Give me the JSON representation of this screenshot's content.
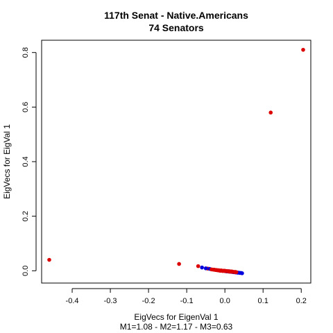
{
  "chart_data": {
    "type": "scatter",
    "title": "117th Senat -  Native.Americans",
    "subtitle": "74 Senators",
    "xlabel": "EigVecs for EigenVal  1",
    "xlabel_sub": "M1=1.08  -  M2=1.17  -  M3=0.63",
    "ylabel": "EigVecs for EigVal 1",
    "xlim": [
      -0.48,
      0.225
    ],
    "ylim": [
      -0.045,
      0.845
    ],
    "x_ticks": [
      -0.4,
      -0.3,
      -0.2,
      -0.1,
      0.0,
      0.1,
      0.2
    ],
    "x_tick_labels": [
      "-0.4",
      "-0.3",
      "-0.2",
      "-0.1",
      "0.0",
      "0.1",
      "0.2"
    ],
    "y_ticks": [
      0.0,
      0.2,
      0.4,
      0.6,
      0.8
    ],
    "y_tick_labels": [
      "0.0",
      "0.2",
      "0.4",
      "0.6",
      "0.8"
    ],
    "grid": false,
    "series": [
      {
        "color": "#dd0000",
        "points": [
          [
            0.205,
            0.81
          ],
          [
            0.12,
            0.58
          ],
          [
            -0.46,
            0.04
          ],
          [
            -0.12,
            0.025
          ],
          [
            -0.07,
            0.017
          ],
          [
            -0.045,
            0.008
          ],
          [
            -0.03,
            0.004
          ],
          [
            -0.025,
            0.003
          ],
          [
            -0.02,
            0.002
          ],
          [
            -0.015,
            0.001
          ],
          [
            -0.012,
            0.0
          ],
          [
            -0.008,
            0.0
          ],
          [
            -0.005,
            -0.001
          ],
          [
            0.0,
            -0.001
          ],
          [
            0.003,
            -0.002
          ],
          [
            0.006,
            -0.002
          ],
          [
            0.01,
            -0.003
          ],
          [
            0.013,
            -0.003
          ],
          [
            0.017,
            -0.004
          ],
          [
            0.02,
            -0.004
          ],
          [
            0.024,
            -0.005
          ],
          [
            -0.018,
            0.002
          ],
          [
            -0.01,
            0.001
          ],
          [
            -0.002,
            0.0
          ],
          [
            0.008,
            -0.002
          ],
          [
            0.015,
            -0.003
          ]
        ]
      },
      {
        "color": "#0000dd",
        "points": [
          [
            -0.06,
            0.012
          ],
          [
            -0.05,
            0.009
          ],
          [
            -0.04,
            0.007
          ],
          [
            0.0,
            -0.001
          ],
          [
            0.005,
            -0.002
          ],
          [
            0.01,
            -0.002
          ],
          [
            0.015,
            -0.003
          ],
          [
            0.02,
            -0.004
          ],
          [
            0.025,
            -0.005
          ],
          [
            0.03,
            -0.006
          ],
          [
            0.033,
            -0.007
          ],
          [
            0.036,
            -0.007
          ],
          [
            0.039,
            -0.008
          ],
          [
            0.042,
            -0.008
          ],
          [
            0.045,
            -0.009
          ],
          [
            0.028,
            -0.006
          ],
          [
            0.022,
            -0.005
          ],
          [
            0.018,
            -0.004
          ],
          [
            0.012,
            -0.003
          ],
          [
            0.007,
            -0.002
          ]
        ]
      },
      {
        "color": "#dd0000",
        "points": [
          [
            -0.035,
            0.005
          ],
          [
            -0.028,
            0.004
          ],
          [
            -0.022,
            0.003
          ],
          [
            -0.016,
            0.002
          ],
          [
            -0.011,
            0.001
          ],
          [
            -0.006,
            0.0
          ],
          [
            0.002,
            -0.001
          ],
          [
            0.011,
            -0.002
          ],
          [
            0.019,
            -0.003
          ],
          [
            0.027,
            -0.004
          ],
          [
            0.0,
            0.0
          ],
          [
            0.004,
            -0.001
          ],
          [
            0.009,
            -0.002
          ],
          [
            -0.014,
            0.001
          ],
          [
            -0.024,
            0.003
          ],
          [
            0.016,
            -0.003
          ],
          [
            0.014,
            -0.003
          ],
          [
            0.021,
            -0.004
          ],
          [
            0.026,
            -0.005
          ],
          [
            0.03,
            -0.005
          ],
          [
            -0.004,
            0.0
          ],
          [
            -0.009,
            0.001
          ],
          [
            0.001,
            -0.001
          ],
          [
            0.005,
            -0.001
          ],
          [
            0.012,
            -0.002
          ],
          [
            0.018,
            -0.003
          ],
          [
            0.023,
            -0.004
          ],
          [
            -0.001,
            0.0
          ]
        ]
      }
    ]
  }
}
